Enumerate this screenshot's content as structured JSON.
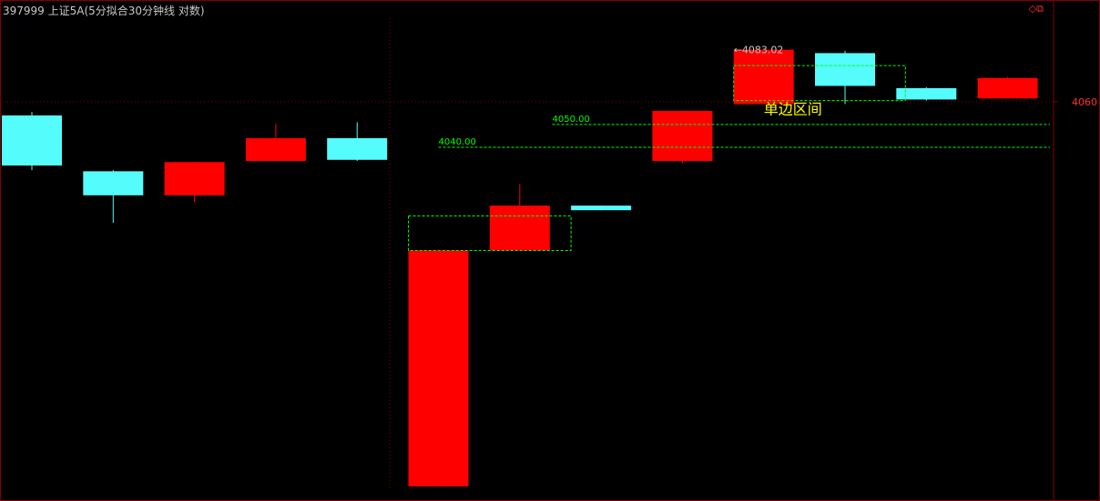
{
  "header": {
    "title": "397999 上证5A(5分拟合30分钟线 对数)",
    "icons": [
      "diamond-icon",
      "restore-window-icon"
    ]
  },
  "colors": {
    "up": "#ff0000",
    "down": "#54fcfc",
    "grid": "#800000",
    "axis_label": "#ff3030",
    "annotation": "#00ff00",
    "region_text": "#ffff00",
    "marker_text": "#c8c8c8"
  },
  "chart_data": {
    "type": "candlestick",
    "title": "397999 上证5A(5分拟合30分钟线 对数)",
    "y_scale": "log",
    "ylim": [
      3889,
      4097
    ],
    "y_ticks": [
      4060
    ],
    "candles": [
      {
        "open": 4054.0,
        "close": 4032.0,
        "high": 4055.5,
        "low": 4030.0
      },
      {
        "open": 4029.5,
        "close": 4019.0,
        "high": 4030.0,
        "low": 4007.0
      },
      {
        "open": 4019.0,
        "close": 4033.5,
        "high": 4033.5,
        "low": 4016.0
      },
      {
        "open": 4034.0,
        "close": 4044.0,
        "high": 4050.5,
        "low": 4034.0
      },
      {
        "open": 4044.0,
        "close": 4034.5,
        "high": 4051.0,
        "low": 4034.0
      },
      {
        "open": 3894.05,
        "close": 3995.0,
        "high": 3995.0,
        "low": 3894.05
      },
      {
        "open": 3995.0,
        "close": 4014.5,
        "high": 4024.0,
        "low": 3995.0
      },
      {
        "open": 4014.5,
        "close": 4012.5,
        "high": 4014.5,
        "low": 4012.5
      },
      {
        "open": 4034.0,
        "close": 4056.0,
        "high": 4056.0,
        "low": 4033.0
      },
      {
        "open": 4059.0,
        "close": 4083.02,
        "high": 4083.02,
        "low": 4059.0
      },
      {
        "open": 4081.5,
        "close": 4067.0,
        "high": 4082.5,
        "low": 4059.0
      },
      {
        "open": 4066.0,
        "close": 4061.0,
        "high": 4066.5,
        "low": 4060.5
      },
      {
        "open": 4061.5,
        "close": 4070.5,
        "high": 4071.0,
        "low": 4061.5
      }
    ],
    "annotations": {
      "high_marker": "4083.02",
      "low_marker": "3894.05",
      "levels": [
        {
          "value": 4050.0,
          "label": "4050.00"
        },
        {
          "value": 4040.0,
          "label": "4040.00"
        }
      ],
      "region_label": "单边区间",
      "box1": {
        "from_candle": 5,
        "to_candle": 7,
        "top": 4010.0,
        "bottom": 3995.0
      },
      "box2": {
        "from_candle": 9,
        "to_candle": 11,
        "top": 4076.0,
        "bottom": 4060.5
      }
    }
  }
}
